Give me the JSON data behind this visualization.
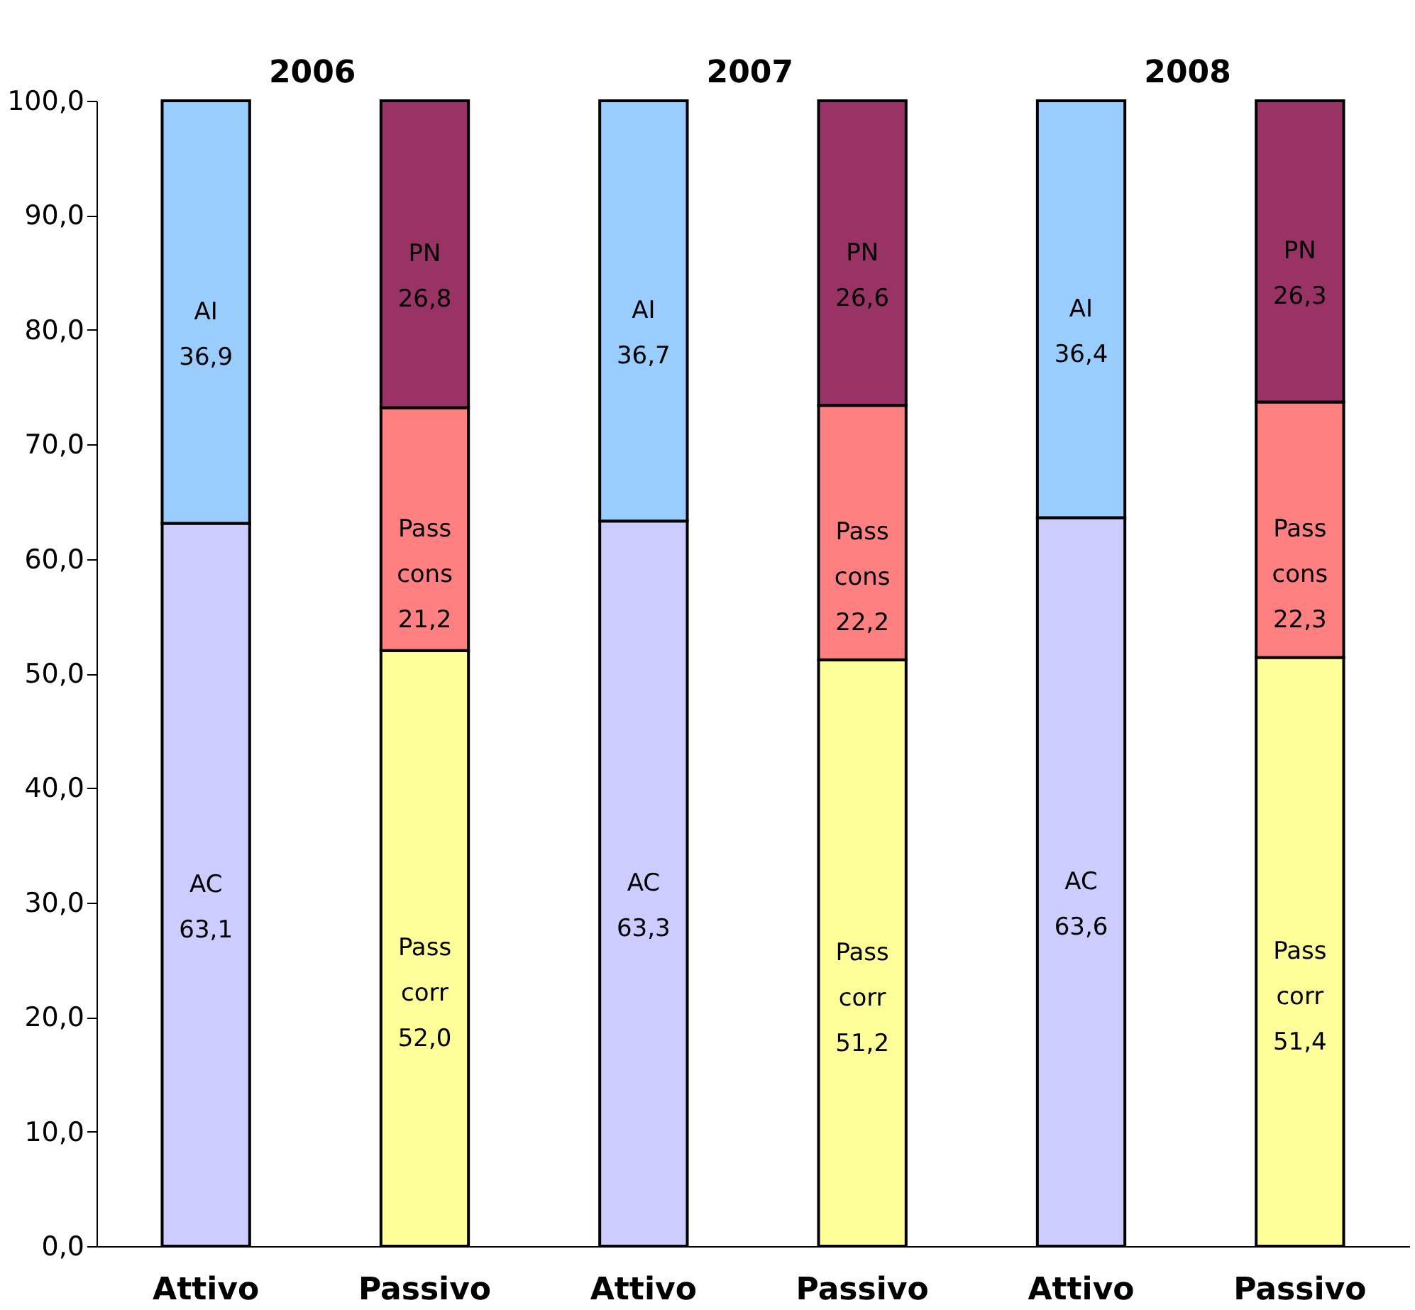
{
  "chart_data": {
    "type": "bar",
    "stacked": true,
    "categories": [
      "Attivo",
      "Passivo",
      "Attivo",
      "Passivo",
      "Attivo",
      "Passivo"
    ],
    "series": [
      {
        "name": "AC",
        "color": "#ccccff",
        "values": [
          63.1,
          null,
          63.3,
          null,
          63.6,
          null
        ],
        "value_labels": [
          "63,1",
          null,
          "63,3",
          null,
          "63,6",
          null
        ]
      },
      {
        "name": "Pass corr",
        "color": "#ffff99",
        "values": [
          null,
          52.0,
          null,
          51.2,
          null,
          51.4
        ],
        "value_labels": [
          null,
          "52,0",
          null,
          "51,2",
          null,
          "51,4"
        ]
      },
      {
        "name": "AI",
        "color": "#99ccff",
        "values": [
          36.9,
          null,
          36.7,
          null,
          36.4,
          null
        ],
        "value_labels": [
          "36,9",
          null,
          "36,7",
          null,
          "36,4",
          null
        ]
      },
      {
        "name": "Pass cons",
        "color": "#ff8080",
        "values": [
          null,
          21.2,
          null,
          22.2,
          null,
          22.3
        ],
        "value_labels": [
          null,
          "21,2",
          null,
          "22,2",
          null,
          "22,3"
        ]
      },
      {
        "name": "PN",
        "color": "#993366",
        "values": [
          null,
          26.8,
          null,
          26.6,
          null,
          26.3
        ],
        "value_labels": [
          null,
          "26,8",
          null,
          "26,6",
          null,
          "26,3"
        ]
      }
    ],
    "ylim": [
      0,
      100
    ],
    "yticks": [
      {
        "value": 0,
        "label": "0,0"
      },
      {
        "value": 10,
        "label": "10,0"
      },
      {
        "value": 20,
        "label": "20,0"
      },
      {
        "value": 30,
        "label": "30,0"
      },
      {
        "value": 40,
        "label": "40,0"
      },
      {
        "value": 50,
        "label": "50,0"
      },
      {
        "value": 60,
        "label": "60,0"
      },
      {
        "value": 70,
        "label": "70,0"
      },
      {
        "value": 80,
        "label": "80,0"
      },
      {
        "value": 90,
        "label": "90,0"
      },
      {
        "value": 100,
        "label": "100,0"
      }
    ],
    "annotations": [
      "2006",
      "2007",
      "2008"
    ]
  }
}
